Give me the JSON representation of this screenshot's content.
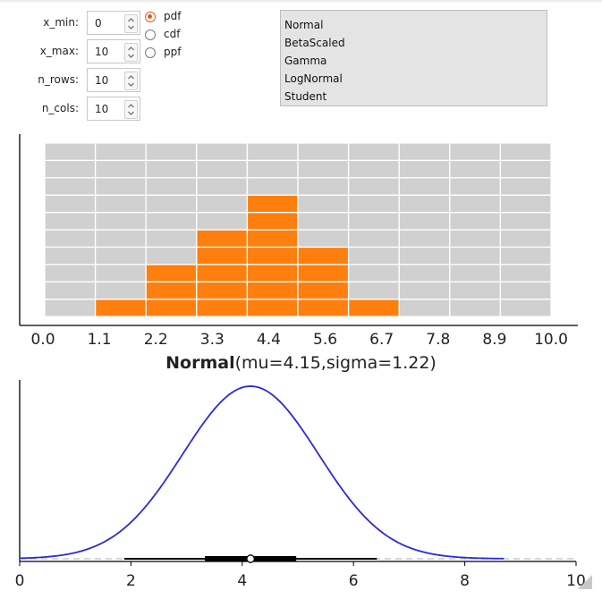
{
  "controls": {
    "x_min": {
      "label": "x_min:",
      "value": "0"
    },
    "x_max": {
      "label": "x_max:",
      "value": "10"
    },
    "n_rows": {
      "label": "n_rows:",
      "value": "10"
    },
    "n_cols": {
      "label": "n_cols:",
      "value": "10"
    }
  },
  "radio": {
    "options": [
      "pdf",
      "cdf",
      "ppf"
    ],
    "selected": "pdf"
  },
  "distributions": {
    "items": [
      "Normal",
      "BetaScaled",
      "Gamma",
      "LogNormal",
      "Student"
    ]
  },
  "grid_chart": {
    "x_tick_labels": [
      "0.0",
      "1.1",
      "2.2",
      "3.3",
      "4.4",
      "5.6",
      "6.7",
      "7.8",
      "8.9",
      "10.0"
    ],
    "n_rows": 10,
    "n_cols": 10,
    "column_heights": [
      0,
      1,
      3,
      5,
      7,
      4,
      1,
      0,
      0,
      0
    ],
    "fill_color": "#ff7f0e",
    "cell_color": "#d0d0d0"
  },
  "dist_title": {
    "name": "Normal",
    "params": "(mu=4.15,sigma=1.22)"
  },
  "chart_data": {
    "type": "line",
    "title": "Normal(mu=4.15,sigma=1.22)",
    "series": [
      {
        "values_from": "pdf"
      }
    ],
    "mu": 4.15,
    "sigma": 1.22,
    "xlim": [
      0,
      10
    ],
    "x_ticks": [
      "0",
      "2",
      "4",
      "6",
      "8",
      "10"
    ],
    "box_interval": {
      "whisker": [
        1.88,
        6.42
      ],
      "box": [
        3.33,
        4.97
      ],
      "median": 4.15
    },
    "line_color": "#2a2ad8"
  }
}
